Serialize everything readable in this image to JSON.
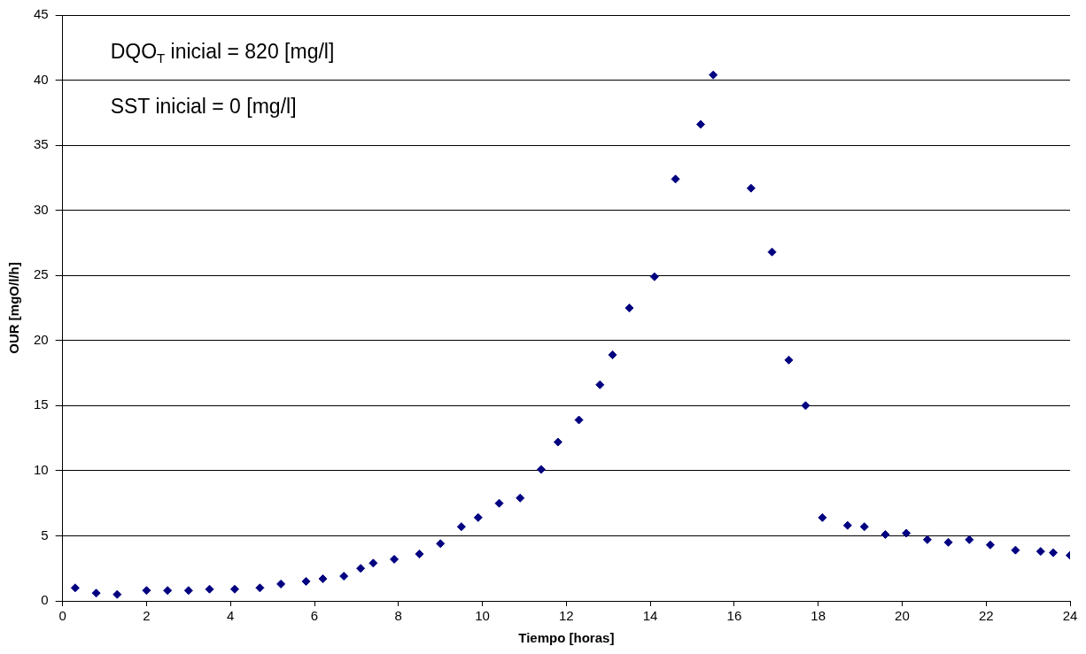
{
  "chart_data": {
    "type": "scatter",
    "xlabel": "Tiempo [horas]",
    "ylabel": "OUR [mgO/l/h]",
    "annotations": [
      "DQO$_{T}$ inicial = 820 [mg/l]",
      "SST inicial = 0 [mg/l]"
    ],
    "x": [
      0.3,
      0.8,
      1.3,
      2.0,
      2.5,
      3.0,
      3.5,
      4.1,
      4.7,
      5.2,
      5.8,
      6.2,
      6.7,
      7.1,
      7.4,
      7.9,
      8.5,
      9.0,
      9.5,
      9.9,
      10.4,
      10.9,
      11.4,
      11.8,
      12.3,
      12.8,
      13.1,
      13.5,
      14.1,
      14.6,
      15.2,
      15.5,
      16.4,
      16.9,
      17.3,
      17.7,
      18.1,
      18.7,
      19.1,
      19.6,
      20.1,
      20.6,
      21.1,
      21.6,
      22.1,
      22.7,
      23.3,
      23.6,
      24.0
    ],
    "series": [
      {
        "color": "#000080",
        "values": [
          1.0,
          0.6,
          0.5,
          0.8,
          0.8,
          0.8,
          0.9,
          0.9,
          1.0,
          1.3,
          1.5,
          1.7,
          1.9,
          2.5,
          2.9,
          3.2,
          3.6,
          4.4,
          5.7,
          6.4,
          7.5,
          7.9,
          10.1,
          12.2,
          13.9,
          16.6,
          18.9,
          22.5,
          24.9,
          32.4,
          36.6,
          40.4,
          31.7,
          26.8,
          18.5,
          15.0,
          6.4,
          5.8,
          5.7,
          5.1,
          5.2,
          4.7,
          4.5,
          4.7,
          4.3,
          3.9,
          3.8,
          3.7,
          3.5
        ]
      }
    ],
    "xlim": [
      0,
      24
    ],
    "xticks": [
      0,
      2,
      4,
      6,
      8,
      10,
      12,
      14,
      16,
      18,
      20,
      22,
      24
    ],
    "ylim": [
      0,
      45
    ],
    "yticks": [
      0,
      5,
      10,
      15,
      20,
      25,
      30,
      35,
      40,
      45
    ],
    "grid": "y",
    "legend": false,
    "marker": "diamond"
  }
}
